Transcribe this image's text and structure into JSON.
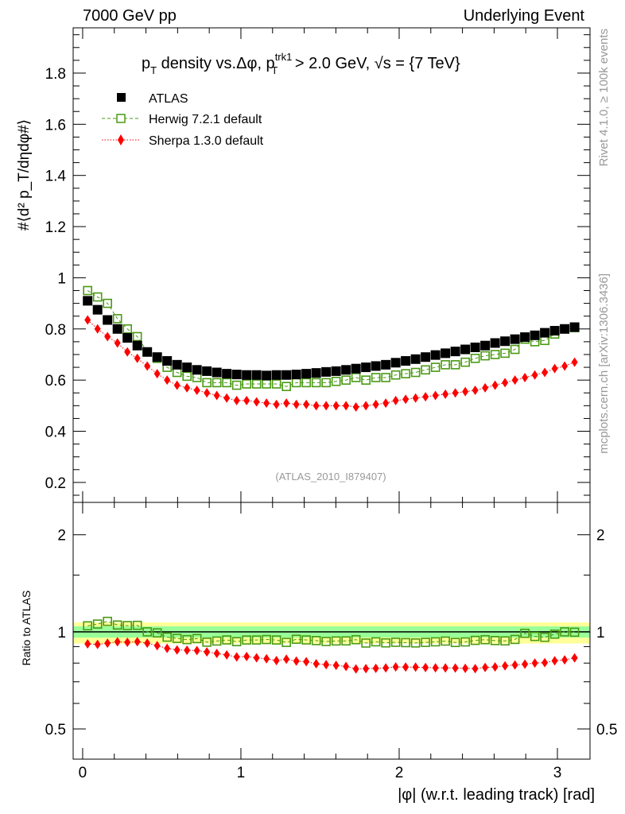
{
  "header": {
    "left": "7000 GeV pp",
    "right": "Underlying Event"
  },
  "side": {
    "rivet": "Rivet 4.1.0, ≥ 100k events",
    "mcplots": "mcplots.cern.ch [arXiv:1306.3436]"
  },
  "chart_data": [
    {
      "type": "scatter",
      "title": {
        "p1": "p",
        "sub1": "T",
        "p2": " density vs.Δφ, p",
        "sup2": "trk1",
        "sub2": "T",
        "p3": " > 2.0 GeV, √s = {7 TeV}"
      },
      "ylabel": "#⟨d² p_T/dηdφ#⟩",
      "xlabel": "|φ| (w.r.t. leading track) [rad]",
      "analysis_tag": "(ATLAS_2010_I879407)",
      "xlim": [
        -0.06,
        3.206
      ],
      "ylim": [
        0.122,
        1.977
      ],
      "xticks": [
        "0",
        "1",
        "2",
        "3"
      ],
      "yticks": [
        "0.2",
        "0.4",
        "0.6",
        "0.8",
        "1",
        "1.2",
        "1.4",
        "1.6",
        "1.8"
      ],
      "legend_position": "top-left",
      "x_bin_width": 0.0628,
      "series": [
        {
          "name": "ATLAS",
          "color": "#000000",
          "marker": "filled-square",
          "values": [
            0.91,
            0.875,
            0.835,
            0.8,
            0.765,
            0.735,
            0.71,
            0.69,
            0.675,
            0.66,
            0.65,
            0.64,
            0.635,
            0.63,
            0.625,
            0.622,
            0.62,
            0.62,
            0.618,
            0.62,
            0.62,
            0.622,
            0.625,
            0.628,
            0.632,
            0.635,
            0.64,
            0.645,
            0.65,
            0.655,
            0.66,
            0.668,
            0.675,
            0.682,
            0.69,
            0.698,
            0.705,
            0.712,
            0.72,
            0.728,
            0.735,
            0.745,
            0.752,
            0.76,
            0.768,
            0.775,
            0.785,
            0.793,
            0.8,
            0.807
          ]
        },
        {
          "name": "Herwig 7.2.1 default",
          "color": "#4a9a14",
          "marker": "open-square",
          "line": "dashed",
          "values": [
            0.95,
            0.925,
            0.9,
            0.84,
            0.8,
            0.77,
            0.71,
            0.685,
            0.65,
            0.63,
            0.615,
            0.61,
            0.59,
            0.59,
            0.59,
            0.58,
            0.585,
            0.585,
            0.585,
            0.585,
            0.575,
            0.59,
            0.59,
            0.59,
            0.59,
            0.595,
            0.6,
            0.61,
            0.6,
            0.61,
            0.61,
            0.62,
            0.625,
            0.63,
            0.64,
            0.65,
            0.66,
            0.66,
            0.67,
            0.685,
            0.695,
            0.7,
            0.705,
            0.72,
            0.76,
            0.75,
            0.755,
            0.78,
            0.8,
            0.805
          ]
        },
        {
          "name": "Sherpa 1.3.0 default",
          "color": "#ff0000",
          "marker": "diamond",
          "line": "dotted",
          "values": [
            0.835,
            0.8,
            0.77,
            0.745,
            0.71,
            0.685,
            0.655,
            0.625,
            0.6,
            0.58,
            0.57,
            0.56,
            0.55,
            0.54,
            0.53,
            0.52,
            0.52,
            0.515,
            0.51,
            0.505,
            0.51,
            0.505,
            0.505,
            0.5,
            0.5,
            0.5,
            0.5,
            0.495,
            0.5,
            0.505,
            0.51,
            0.52,
            0.525,
            0.53,
            0.535,
            0.54,
            0.545,
            0.55,
            0.555,
            0.56,
            0.57,
            0.58,
            0.59,
            0.6,
            0.61,
            0.62,
            0.63,
            0.645,
            0.655,
            0.67
          ]
        }
      ]
    },
    {
      "type": "scatter",
      "ylabel": "Ratio to ATLAS",
      "yscale": "log",
      "ylim": [
        0.403,
        2.52
      ],
      "yticks": [
        "0.5",
        "1",
        "2"
      ],
      "reference_band": {
        "inner": [
          0.96,
          1.04
        ],
        "outer": [
          0.92,
          1.07
        ]
      },
      "colors": {
        "inner_band": "#99ff99",
        "outer_band": "#ffff99"
      }
    }
  ]
}
